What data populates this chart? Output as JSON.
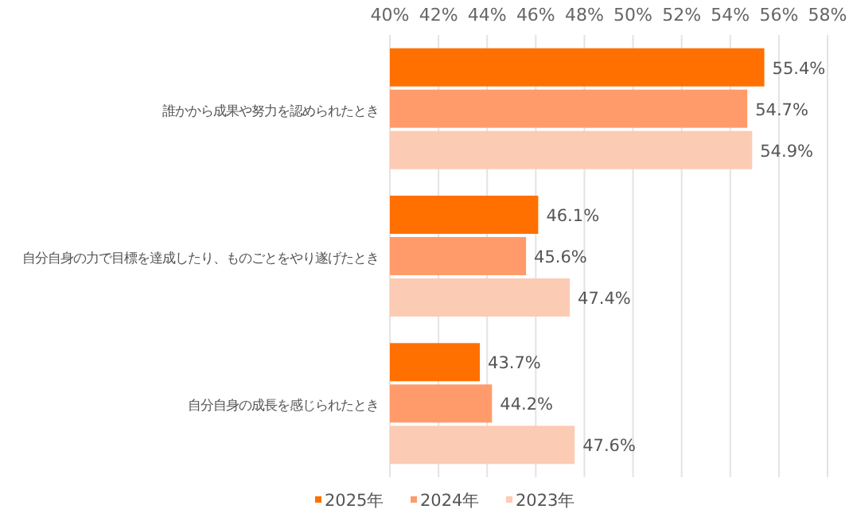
{
  "chart_data": {
    "type": "bar",
    "orientation": "horizontal",
    "categories": [
      "誰かから成果や努力を認められたとき",
      "自分自身の力で目標を達成したり、ものごとをやり遂げたとき",
      "自分自身の成長を感じられたとき"
    ],
    "series": [
      {
        "name": "2025年",
        "color": "#ff7000",
        "values": [
          55.4,
          46.1,
          43.7
        ],
        "value_labels": [
          "55.4%",
          "46.1%",
          "43.7%"
        ]
      },
      {
        "name": "2024年",
        "color": "#ff9b6b",
        "values": [
          54.7,
          45.6,
          44.2
        ],
        "value_labels": [
          "54.7%",
          "45.6%",
          "44.2%"
        ]
      },
      {
        "name": "2023年",
        "color": "#fccbb4",
        "values": [
          54.9,
          47.4,
          47.6
        ],
        "value_labels": [
          "54.9%",
          "47.4%",
          "47.6%"
        ]
      }
    ],
    "xlim": [
      40,
      58
    ],
    "xticks": [
      {
        "value": 40,
        "label": "40%"
      },
      {
        "value": 42,
        "label": "42%"
      },
      {
        "value": 44,
        "label": "44%"
      },
      {
        "value": 46,
        "label": "46%"
      },
      {
        "value": 48,
        "label": "48%"
      },
      {
        "value": 50,
        "label": "50%"
      },
      {
        "value": 52,
        "label": "52%"
      },
      {
        "value": 54,
        "label": "54%"
      },
      {
        "value": 56,
        "label": "56%"
      },
      {
        "value": 58,
        "label": "58%"
      }
    ],
    "grid": "x",
    "legend": "bottom"
  }
}
